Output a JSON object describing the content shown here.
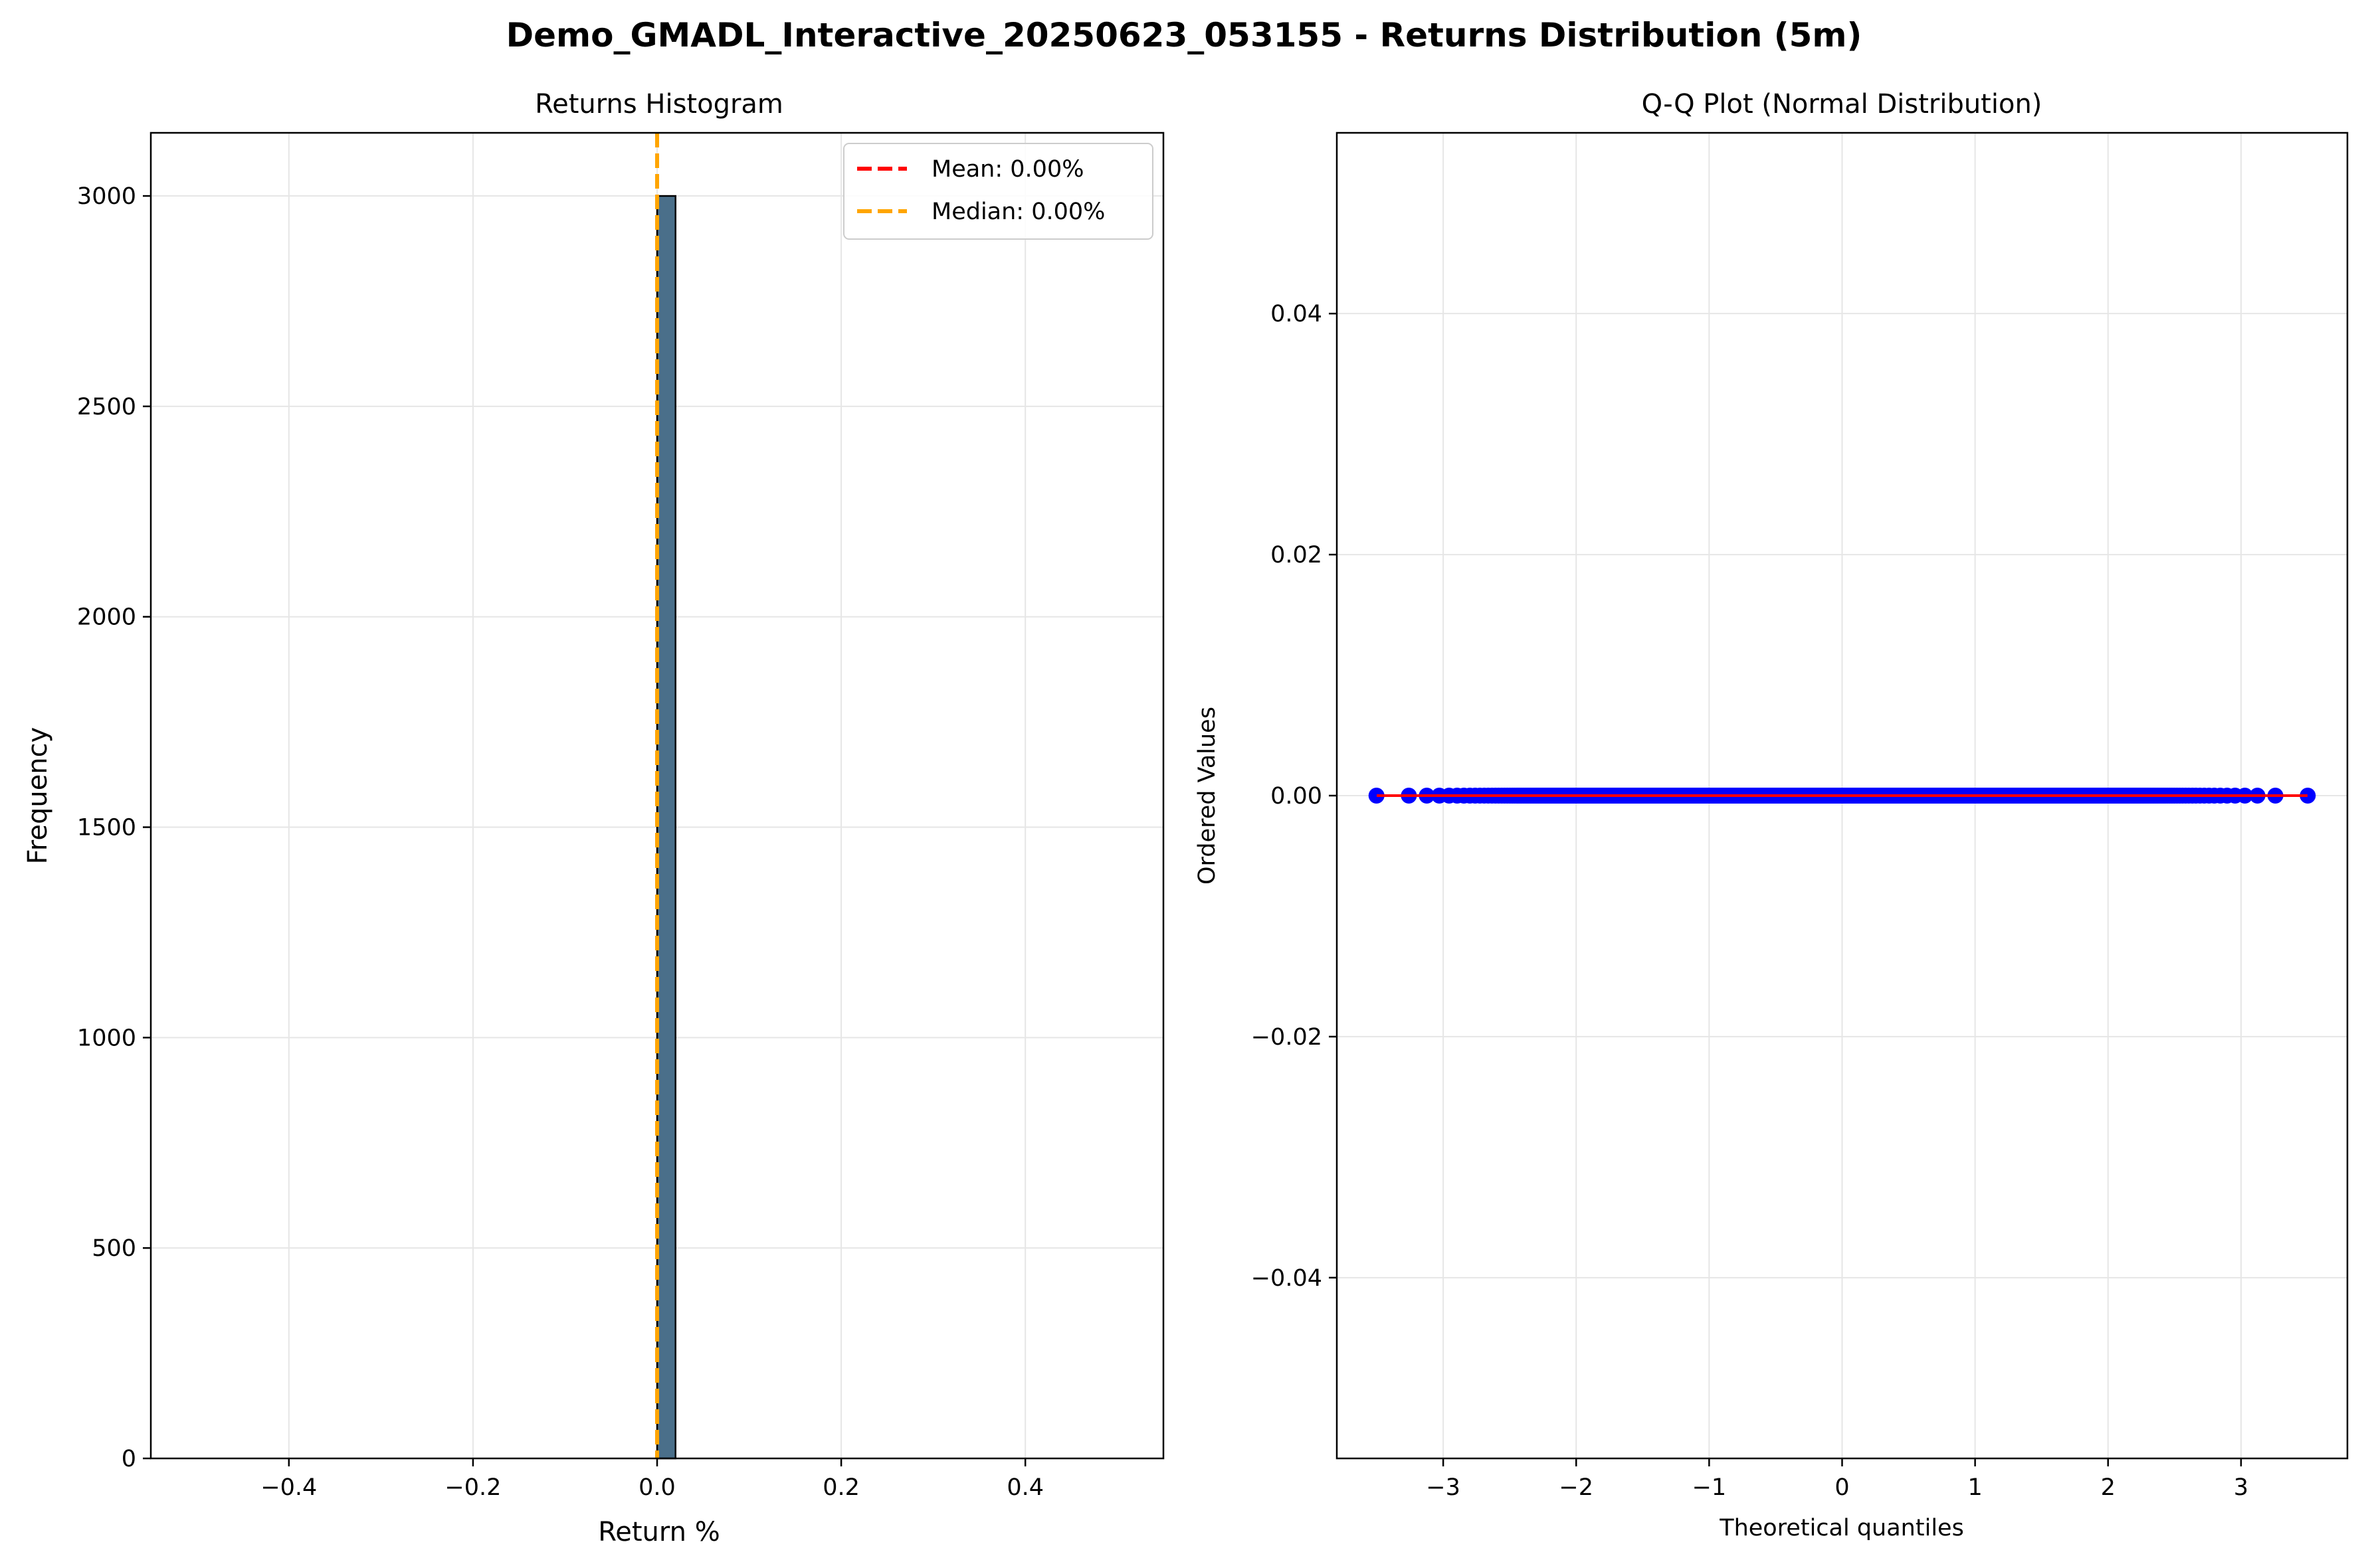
{
  "suptitle": "Demo_GMADL_Interactive_20250623_053155 - Returns Distribution (5m)",
  "colors": {
    "bar_fill": "#4a6f8a",
    "bar_edge": "#000000",
    "mean_line": "#ff0000",
    "median_line": "#ffa500",
    "qq_points": "#0000ff",
    "qq_line": "#ff0000",
    "grid": "#e6e6e6"
  },
  "chart_data": [
    {
      "type": "bar",
      "title": "Returns Histogram",
      "xlabel": "Return %",
      "ylabel": "Frequency",
      "xlim": [
        -0.55,
        0.55
      ],
      "ylim": [
        0,
        3150
      ],
      "xticks": [
        -0.4,
        -0.2,
        0.0,
        0.2,
        0.4
      ],
      "xtick_labels": [
        "−0.4",
        "−0.2",
        "0.0",
        "0.2",
        "0.4"
      ],
      "yticks": [
        0,
        500,
        1000,
        1500,
        2000,
        2500,
        3000
      ],
      "ytick_labels": [
        "0",
        "500",
        "1000",
        "1500",
        "2000",
        "2500",
        "3000"
      ],
      "grid": true,
      "bins": {
        "start": -0.5,
        "end": 0.5,
        "count": 50
      },
      "bars": [
        {
          "bin_start": 0.0,
          "bin_end": 0.02,
          "count": 3000
        }
      ],
      "vlines": [
        {
          "label": "Mean: 0.00%",
          "x": 0.0,
          "color": "#ff0000",
          "style": "dashed"
        },
        {
          "label": "Median: 0.00%",
          "x": 0.0,
          "color": "#ffa500",
          "style": "dashed"
        }
      ],
      "legend_position": "top-right"
    },
    {
      "type": "scatter",
      "title": "Q-Q Plot (Normal Distribution)",
      "xlabel": "Theoretical quantiles",
      "ylabel": "Ordered Values",
      "xlim": [
        -3.8,
        3.8
      ],
      "ylim": [
        -0.055,
        0.055
      ],
      "xticks": [
        -3,
        -2,
        -1,
        0,
        1,
        2,
        3
      ],
      "xtick_labels": [
        "−3",
        "−2",
        "−1",
        "0",
        "1",
        "2",
        "3"
      ],
      "yticks": [
        -0.04,
        -0.02,
        0.0,
        0.02,
        0.04
      ],
      "ytick_labels": [
        "−0.04",
        "−0.02",
        "0.00",
        "0.02",
        "0.04"
      ],
      "grid": true,
      "points": {
        "n": 3000,
        "y": 0.0,
        "x_range": [
          -3.5,
          3.5
        ]
      },
      "fit_line": {
        "x": [
          -3.5,
          3.5
        ],
        "y": [
          0.0,
          0.0
        ]
      }
    }
  ]
}
